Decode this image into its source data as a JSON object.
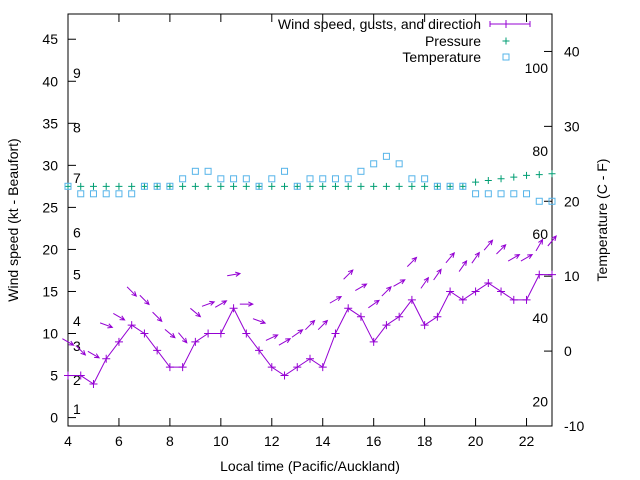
{
  "chart_data": {
    "type": "line",
    "xlabel": "Local time (Pacific/Auckland)",
    "ylabel_left": "Wind speed (kt - Beaufort)",
    "ylabel_right": "Temperature (C - F)",
    "xlim": [
      4,
      23
    ],
    "ylim_left": [
      -1,
      48
    ],
    "ylim_right": [
      -10,
      45
    ],
    "x_ticks": [
      4,
      6,
      8,
      10,
      12,
      14,
      16,
      18,
      20,
      22
    ],
    "y_ticks_left": [
      0,
      5,
      10,
      15,
      20,
      25,
      30,
      35,
      40,
      45
    ],
    "y_ticks_right": [
      -10,
      0,
      10,
      20,
      30,
      40
    ],
    "beaufort_labels": [
      {
        "text": "1",
        "kt": 1
      },
      {
        "text": "2",
        "kt": 4.5
      },
      {
        "text": "3",
        "kt": 8.5
      },
      {
        "text": "4",
        "kt": 11.5
      },
      {
        "text": "5",
        "kt": 17
      },
      {
        "text": "6",
        "kt": 22
      },
      {
        "text": "7",
        "kt": 28.5
      },
      {
        "text": "8",
        "kt": 34.5
      },
      {
        "text": "9",
        "kt": 41
      }
    ],
    "fahrenheit_labels": [
      {
        "text": "20",
        "c": -6.7
      },
      {
        "text": "40",
        "c": 4.4
      },
      {
        "text": "60",
        "c": 15.6
      },
      {
        "text": "80",
        "c": 26.7
      },
      {
        "text": "100",
        "c": 37.8
      }
    ],
    "legend": {
      "position": "top-right",
      "entries": [
        "Wind speed, gusts, and direction",
        "Pressure",
        "Temperature"
      ]
    },
    "colors": {
      "wind": "#9400d3",
      "pressure": "#009e73",
      "temperature": "#56b4e9"
    },
    "series": [
      {
        "name": "Wind speed, gusts, and direction",
        "axis": "left",
        "x": [
          4,
          4.5,
          5,
          5.5,
          6,
          6.5,
          7,
          7.5,
          8,
          8.5,
          9,
          9.5,
          10,
          10.5,
          11,
          11.5,
          12,
          12.5,
          13,
          13.5,
          14,
          14.5,
          15,
          15.5,
          16,
          16.5,
          17,
          17.5,
          18,
          18.5,
          19,
          19.5,
          20,
          20.5,
          21,
          21.5,
          22,
          22.5,
          23
        ],
        "values": [
          5,
          5,
          4,
          7,
          9,
          11,
          10,
          8,
          6,
          6,
          9,
          10,
          10,
          13,
          10,
          8,
          6,
          5,
          6,
          7,
          6,
          10,
          13,
          12,
          9,
          11,
          12,
          14,
          11,
          12,
          15,
          14,
          15,
          16,
          15,
          14,
          14,
          17,
          17
        ],
        "gusts": [
          9,
          8,
          7.5,
          11,
          12,
          15,
          14,
          12,
          10,
          9.5,
          12.5,
          13.5,
          13.5,
          17,
          13.5,
          11.5,
          9.5,
          9,
          10,
          11,
          11,
          14,
          17,
          15.5,
          13.5,
          15,
          16,
          18.5,
          16,
          17,
          19,
          18,
          19,
          20.5,
          20,
          19,
          19,
          20.5,
          21
        ],
        "direction_deg": [
          300,
          315,
          300,
          290,
          300,
          315,
          315,
          315,
          310,
          320,
          310,
          250,
          240,
          260,
          270,
          290,
          245,
          240,
          235,
          225,
          225,
          240,
          225,
          240,
          235,
          225,
          240,
          225,
          215,
          215,
          220,
          215,
          215,
          220,
          225,
          240,
          240,
          210,
          220
        ]
      },
      {
        "name": "Pressure",
        "axis": "left",
        "x": [
          4,
          4.5,
          5,
          5.5,
          6,
          6.5,
          7,
          7.5,
          8,
          8.5,
          9,
          9.5,
          10,
          10.5,
          11,
          11.5,
          12,
          12.5,
          13,
          13.5,
          14,
          14.5,
          15,
          15.5,
          16,
          16.5,
          17,
          17.5,
          18,
          18.5,
          19,
          19.5,
          20,
          20.5,
          21,
          21.5,
          22,
          22.5,
          23
        ],
        "values": [
          27.5,
          27.5,
          27.5,
          27.5,
          27.5,
          27.5,
          27.5,
          27.5,
          27.5,
          27.5,
          27.5,
          27.5,
          27.5,
          27.5,
          27.5,
          27.5,
          27.5,
          27.5,
          27.5,
          27.5,
          27.5,
          27.5,
          27.5,
          27.5,
          27.5,
          27.5,
          27.5,
          27.5,
          27.5,
          27.5,
          27.5,
          27.5,
          28,
          28.2,
          28.4,
          28.6,
          28.8,
          28.9,
          29
        ]
      },
      {
        "name": "Temperature",
        "axis": "right",
        "x": [
          4,
          4.5,
          5,
          5.5,
          6,
          6.5,
          7,
          7.5,
          8,
          8.5,
          9,
          9.5,
          10,
          10.5,
          11,
          11.5,
          12,
          12.5,
          13,
          13.5,
          14,
          14.5,
          15,
          15.5,
          16,
          16.5,
          17,
          17.5,
          18,
          18.5,
          19,
          19.5,
          20,
          20.5,
          21,
          21.5,
          22,
          22.5,
          23
        ],
        "values": [
          22,
          21,
          21,
          21,
          21,
          21,
          22,
          22,
          22,
          23,
          24,
          24,
          23,
          23,
          23,
          22,
          23,
          24,
          22,
          23,
          23,
          23,
          23,
          24,
          25,
          26,
          25,
          23,
          23,
          22,
          22,
          22,
          21,
          21,
          21,
          21,
          21,
          20,
          20
        ]
      }
    ]
  }
}
